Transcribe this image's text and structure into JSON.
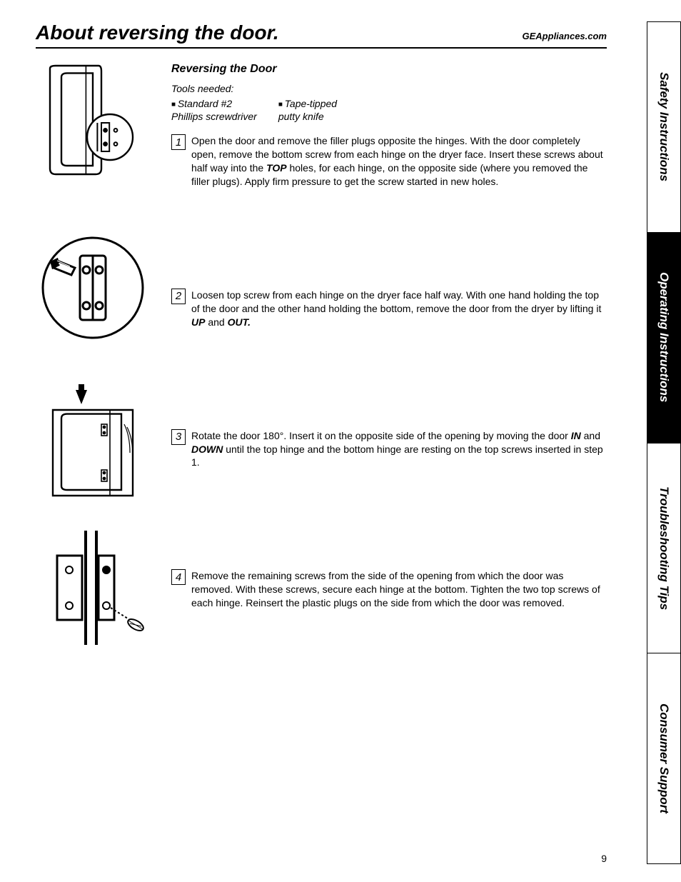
{
  "header": {
    "title": "About reversing the door.",
    "url": "GEAppliances.com"
  },
  "section": {
    "heading": "Reversing the Door",
    "tools_label": "Tools needed:",
    "tools": [
      "Standard #2\nPhillips screwdriver",
      "Tape-tipped\nputty knife"
    ]
  },
  "steps": [
    {
      "num": "1",
      "text": "Open the door and remove the filler plugs opposite the hinges. With the door completely open, remove the bottom screw from each hinge on the dryer face. Insert these screws about half way into the <b>TOP</b> holes, for each hinge, on the opposite side (where you removed the filler plugs). Apply firm pressure to get the screw started in new holes."
    },
    {
      "num": "2",
      "text": "Loosen top screw from each hinge on the dryer face half way. With one hand holding the top of the door and the other hand holding the bottom, remove the door from the dryer by lifting it <b>UP</b> and <b>OUT.</b>"
    },
    {
      "num": "3",
      "text": "Rotate the door 180°. Insert it on the opposite side of the opening by moving the door <b>IN</b> and <b>DOWN</b> until the top hinge and the bottom hinge are resting on the top screws inserted in step 1."
    },
    {
      "num": "4",
      "text": "Remove the remaining screws from the side of the opening from which the door was removed. With these screws, secure each hinge at the bottom. Tighten the two top screws of each hinge. Reinsert the plastic plugs on the side from which the door was removed."
    }
  ],
  "tabs": [
    {
      "label": "Safety Instructions",
      "active": false
    },
    {
      "label": "Operating Instructions",
      "active": true
    },
    {
      "label": "Troubleshooting Tips",
      "active": false
    },
    {
      "label": "Consumer Support",
      "active": false
    }
  ],
  "page_number": "9",
  "colors": {
    "text": "#000000",
    "bg": "#ffffff",
    "tab_active_bg": "#000000",
    "tab_active_fg": "#ffffff"
  }
}
